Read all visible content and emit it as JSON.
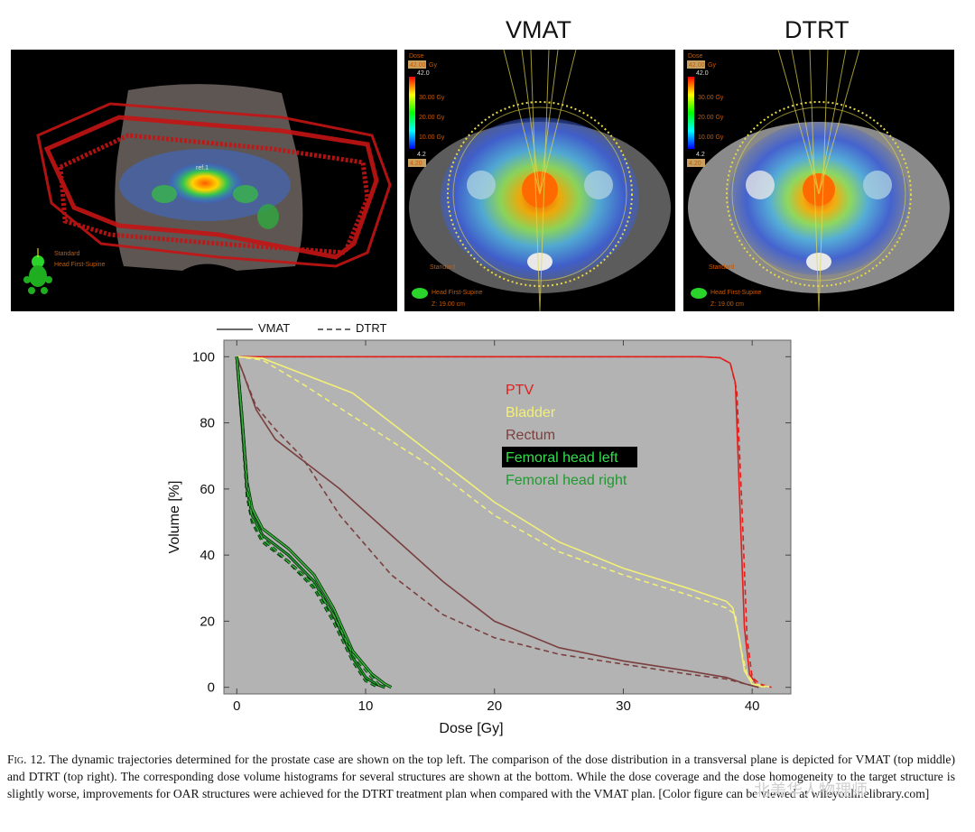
{
  "titles": {
    "vmat": "VMAT",
    "dtrt": "DTRT"
  },
  "panel_3d": {
    "label_target": "ref.1",
    "orientation_1": "Standard",
    "orientation_2": "Head First-Supine"
  },
  "panel_vmat": {
    "dose_label": "Dose",
    "dose_max": "42.00",
    "dose_unit": "Gy",
    "scale_top": "42.0",
    "scale_ticks": [
      "30.00 Gy",
      "20.00 Gy",
      "10.00 Gy"
    ],
    "scale_low": "4.2",
    "scale_low_box": "4.20",
    "orientation_1": "Standard",
    "orientation_2": "Head First-Supine",
    "z_readout": "Z:  19.00 cm"
  },
  "panel_dtrt": {
    "dose_label": "Dose",
    "dose_max": "42.00",
    "dose_unit": "Gy",
    "scale_top": "42.0",
    "scale_ticks": [
      "30.00 Gy",
      "20.00 Gy",
      "10.00 Gy"
    ],
    "scale_low": "4.2",
    "scale_low_box": "4.20",
    "orientation_1": "Standard",
    "orientation_2": "Head First-Supine",
    "z_readout": "Z:  19.00 cm"
  },
  "line_legend": {
    "solid": "VMAT",
    "dashed": "DTRT"
  },
  "chart_data": {
    "type": "line",
    "xlabel": "Dose [Gy]",
    "ylabel": "Volume [%]",
    "xlim": [
      -1,
      43
    ],
    "ylim": [
      -2,
      105
    ],
    "xticks": [
      0,
      10,
      20,
      30,
      40
    ],
    "yticks": [
      0,
      20,
      40,
      60,
      80,
      100
    ],
    "grid": false,
    "background": "#b3b3b3",
    "legend_position": "top-right",
    "series": [
      {
        "name": "PTV",
        "color": "#e0201c",
        "style": "solid",
        "x": [
          0,
          36,
          37.5,
          38.3,
          38.7,
          39.0,
          39.4,
          39.8,
          40.3,
          41.0
        ],
        "y": [
          100,
          100,
          99.7,
          98,
          92,
          60,
          18,
          4,
          1,
          0
        ]
      },
      {
        "name": "PTV",
        "color": "#e0201c",
        "style": "dashed",
        "x": [
          0,
          36,
          37.5,
          38.3,
          38.8,
          39.2,
          39.6,
          40.0,
          40.6,
          41.5
        ],
        "y": [
          100,
          100,
          99.7,
          98,
          90,
          55,
          15,
          3,
          1,
          0
        ]
      },
      {
        "name": "Bladder",
        "color": "#f2ef7a",
        "style": "solid",
        "x": [
          0,
          2,
          5,
          9,
          15,
          20,
          25,
          30,
          35,
          38,
          38.5,
          39.0,
          39.4,
          40,
          41
        ],
        "y": [
          100,
          99.5,
          95,
          89,
          71,
          56,
          44,
          36,
          30,
          26,
          24,
          15,
          5,
          1,
          0
        ]
      },
      {
        "name": "Bladder",
        "color": "#f2ef7a",
        "style": "dashed",
        "x": [
          0,
          2,
          5,
          9,
          15,
          20,
          25,
          30,
          35,
          38,
          38.7,
          39.1,
          39.6,
          40.2,
          41.5
        ],
        "y": [
          100,
          99,
          92,
          82,
          67,
          52,
          41,
          34,
          28,
          24,
          22,
          12,
          4,
          1,
          0
        ]
      },
      {
        "name": "Rectum",
        "color": "#7a3f3f",
        "style": "solid",
        "x": [
          0,
          0.5,
          1.5,
          3,
          5,
          8,
          12,
          16,
          20,
          25,
          30,
          35,
          38,
          39.5,
          40.5
        ],
        "y": [
          100,
          95,
          84,
          75,
          69,
          60,
          46,
          32,
          20,
          12,
          8,
          5,
          3,
          1,
          0
        ]
      },
      {
        "name": "Rectum",
        "color": "#7a3f3f",
        "style": "dashed",
        "x": [
          0,
          0.5,
          1.5,
          3,
          5,
          8,
          12,
          16,
          20,
          25,
          30,
          35,
          38,
          39.5,
          40.5
        ],
        "y": [
          100,
          95,
          85,
          78,
          70,
          52,
          34,
          22,
          15,
          10,
          7,
          4,
          2.5,
          1,
          0
        ]
      },
      {
        "name": "Femoral head left",
        "color": "#1f9a2e",
        "style": "solid",
        "x": [
          0,
          0.4,
          0.8,
          1.2,
          2,
          4,
          6,
          7.5,
          9,
          10,
          10.8,
          11.5
        ],
        "y": [
          100,
          80,
          60,
          52,
          46,
          40,
          32,
          22,
          9,
          3,
          1,
          0
        ]
      },
      {
        "name": "Femoral head left",
        "color": "#1f9a2e",
        "style": "dashed",
        "x": [
          0,
          0.4,
          0.8,
          1.2,
          2,
          4,
          6,
          7.5,
          9,
          10,
          11.0
        ],
        "y": [
          100,
          80,
          58,
          50,
          44,
          38,
          30,
          20,
          8,
          2,
          0
        ]
      },
      {
        "name": "Femoral head right",
        "color": "#38b43e",
        "style": "solid",
        "x": [
          0,
          0.4,
          0.8,
          1.2,
          2,
          4,
          6,
          7.5,
          9,
          10.5,
          11.5,
          12
        ],
        "y": [
          100,
          82,
          62,
          54,
          48,
          42,
          34,
          24,
          11,
          4,
          1,
          0
        ]
      },
      {
        "name": "Femoral head right",
        "color": "#38b43e",
        "style": "dashed",
        "x": [
          0,
          0.4,
          0.8,
          1.2,
          2,
          4,
          6,
          7.5,
          9,
          10.5,
          11.2
        ],
        "y": [
          100,
          82,
          60,
          51,
          45,
          38,
          31,
          22,
          10,
          3,
          0
        ]
      }
    ],
    "legend_entries": [
      {
        "label": "PTV",
        "color": "#e0201c"
      },
      {
        "label": "Bladder",
        "color": "#f2ef7a"
      },
      {
        "label": "Rectum",
        "color": "#7a3f3f"
      },
      {
        "label": "Femoral head left",
        "color": "#2fe04a",
        "highlight": true
      },
      {
        "label": "Femoral head right",
        "color": "#1f9a2e"
      }
    ]
  },
  "caption": {
    "fig_label": "Fig. 12.",
    "text": "The dynamic trajectories determined for the prostate case are shown on the top left. The comparison of the dose distribution in a transversal plane is depicted for VMAT (top middle) and DTRT (top right). The corresponding dose volume histograms for several structures are shown at the bottom. While the dose coverage and the dose homogeneity to the target structure is slightly worse, improvements for OAR structures were achieved for the DTRT treatment plan when compared with the VMAT plan. [Color figure can be viewed at wileyonlinelibrary.com]"
  },
  "watermark": "北美华人物理师"
}
